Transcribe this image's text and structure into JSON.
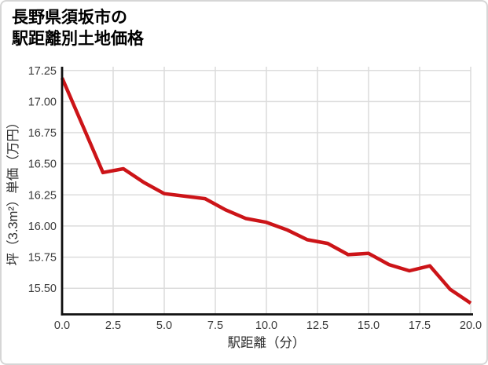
{
  "title": {
    "line1": "長野県須坂市の",
    "line2": "駅距離別土地価格"
  },
  "chart_data": {
    "type": "line",
    "title": "長野県須坂市の駅距離別土地価格",
    "xlabel": "駅距離（分）",
    "ylabel": "坪（3.3m²）単価（万円）",
    "x": [
      0,
      1,
      2,
      3,
      4,
      5,
      6,
      7,
      8,
      9,
      10,
      11,
      12,
      13,
      14,
      15,
      16,
      17,
      18,
      19,
      20
    ],
    "values": [
      17.19,
      16.81,
      16.43,
      16.46,
      16.35,
      16.26,
      16.24,
      16.22,
      16.13,
      16.06,
      16.03,
      15.97,
      15.89,
      15.86,
      15.77,
      15.78,
      15.69,
      15.64,
      15.68,
      15.49,
      15.38
    ],
    "xlim": [
      0,
      20
    ],
    "ylim": [
      15.29,
      17.28
    ],
    "xtick_values": [
      0,
      2.5,
      5,
      7.5,
      10,
      12.5,
      15,
      17.5,
      20
    ],
    "xtick_labels": [
      "0.0",
      "2.5",
      "5.0",
      "7.5",
      "10.0",
      "12.5",
      "15.0",
      "17.5",
      "20.0"
    ],
    "ytick_values": [
      15.5,
      15.75,
      16.0,
      16.25,
      16.5,
      16.75,
      17.0,
      17.25
    ],
    "ytick_labels": [
      "15.50",
      "15.75",
      "16.00",
      "16.25",
      "16.50",
      "16.75",
      "17.00",
      "17.25"
    ],
    "grid": true,
    "legend_position": "none",
    "line_color": "#cc1418"
  },
  "style": {
    "line_width": 4.5,
    "grid_color": "#dcdcdc",
    "spine_color": "#0f0f0f",
    "tick_text_color": "#3a3a3a",
    "card_border_color": "#d6d6d6",
    "background_color": "#ffffff"
  }
}
